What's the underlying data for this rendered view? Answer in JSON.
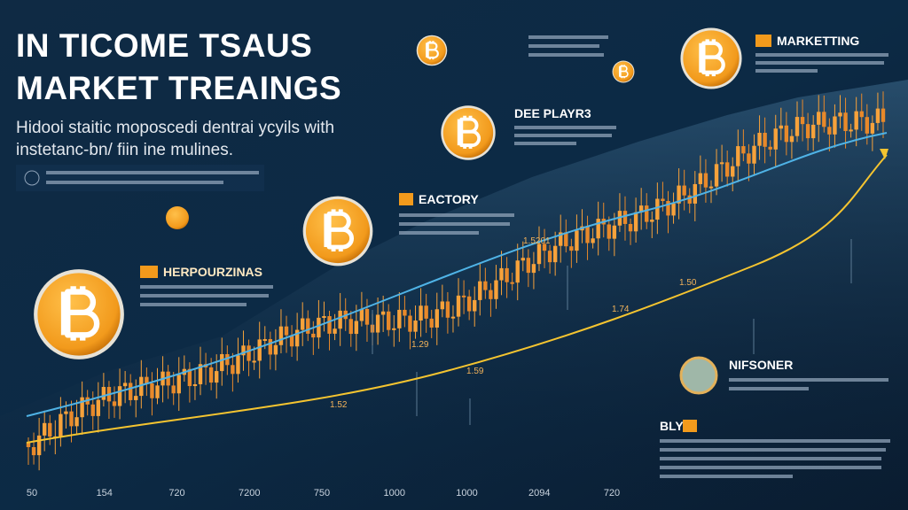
{
  "header": {
    "title_lines": [
      "IN TICOME TSAUS",
      "MARKET TREAINGS"
    ],
    "subtitle_lines": [
      "Hidooi staitic moposcedi dentrai ycyils with",
      "instetanc-bn/ fiin ine mulines."
    ]
  },
  "sections": [
    {
      "label": "HERPOURZINAS"
    },
    {
      "label": "EACTORY"
    },
    {
      "label": "DEE PLAYR3"
    },
    {
      "label": "MARKETTING"
    },
    {
      "label": "NIFSONER"
    },
    {
      "label": "BLY"
    }
  ],
  "annotations": [
    "1.5201",
    "1.50",
    "1.74",
    "1.29",
    "1.52",
    "1.59"
  ],
  "x_axis_labels": [
    "50",
    "154",
    "720",
    "7200",
    "750",
    "1000",
    "1000",
    "2094",
    "720"
  ]
}
